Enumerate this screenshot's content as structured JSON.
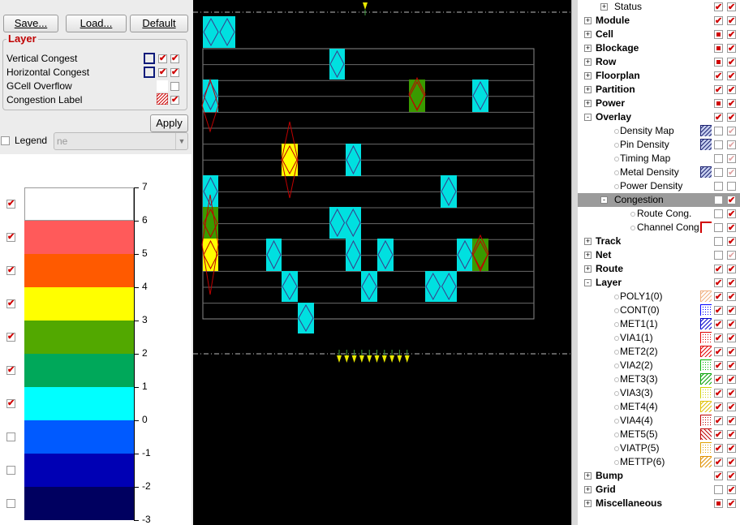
{
  "toolbar": {
    "save_label": "Save...",
    "load_label": "Load...",
    "default_label": "Default"
  },
  "layer_group": {
    "title": "Layer",
    "rows": [
      {
        "label": "Vertical Congest",
        "checked": true
      },
      {
        "label": "Horizontal Congest",
        "checked": true
      },
      {
        "label": "GCell Overflow",
        "checked": false
      },
      {
        "label": "Congestion Label",
        "checked": true
      }
    ],
    "apply_label": "Apply"
  },
  "legend": {
    "label": "Legend",
    "checked": false,
    "select_value": "ne",
    "bands": [
      {
        "color": "#ffffff",
        "checked": true
      },
      {
        "color": "#ff5a5a",
        "checked": true
      },
      {
        "color": "#ff5a00",
        "checked": true
      },
      {
        "color": "#ffff00",
        "checked": true
      },
      {
        "color": "#52a800",
        "checked": true
      },
      {
        "color": "#00a85a",
        "checked": true
      },
      {
        "color": "#00ffff",
        "checked": true
      },
      {
        "color": "#005aff",
        "checked": false
      },
      {
        "color": "#0000b4",
        "checked": false
      },
      {
        "color": "#000060",
        "checked": false
      }
    ],
    "ticks": [
      "7",
      "6",
      "5",
      "4",
      "3",
      "2",
      "1",
      "0",
      "-1",
      "-2",
      "-3"
    ]
  },
  "tree": {
    "rows": [
      {
        "label": "Status",
        "level": "child",
        "bold": false
      },
      {
        "label": "Module",
        "level": "top",
        "bold": true
      },
      {
        "label": "Cell",
        "level": "top",
        "bold": true
      },
      {
        "label": "Blockage",
        "level": "top",
        "bold": true
      },
      {
        "label": "Row",
        "level": "top",
        "bold": true
      },
      {
        "label": "Floorplan",
        "level": "top",
        "bold": true
      },
      {
        "label": "Partition",
        "level": "top",
        "bold": true
      },
      {
        "label": "Power",
        "level": "top",
        "bold": true
      },
      {
        "label": "Overlay",
        "level": "top",
        "bold": true
      },
      {
        "label": "Density Map",
        "level": "child",
        "bold": false
      },
      {
        "label": "Pin Density",
        "level": "child",
        "bold": false
      },
      {
        "label": "Timing Map",
        "level": "child",
        "bold": false
      },
      {
        "label": "Metal Density",
        "level": "child",
        "bold": false
      },
      {
        "label": "Power Density",
        "level": "child",
        "bold": false
      },
      {
        "label": "Congestion",
        "level": "child",
        "bold": false
      },
      {
        "label": "Route Cong.",
        "level": "grandchild",
        "bold": false
      },
      {
        "label": "Channel Cong",
        "level": "grandchild",
        "bold": false
      },
      {
        "label": "Track",
        "level": "top",
        "bold": true
      },
      {
        "label": "Net",
        "level": "top",
        "bold": true
      },
      {
        "label": "Route",
        "level": "top",
        "bold": true
      },
      {
        "label": "Layer",
        "level": "top",
        "bold": true
      },
      {
        "label": "POLY1(0)",
        "level": "child",
        "bold": false
      },
      {
        "label": "CONT(0)",
        "level": "child",
        "bold": false
      },
      {
        "label": "MET1(1)",
        "level": "child",
        "bold": false
      },
      {
        "label": "VIA1(1)",
        "level": "child",
        "bold": false
      },
      {
        "label": "MET2(2)",
        "level": "child",
        "bold": false
      },
      {
        "label": "VIA2(2)",
        "level": "child",
        "bold": false
      },
      {
        "label": "MET3(3)",
        "level": "child",
        "bold": false
      },
      {
        "label": "VIA3(3)",
        "level": "child",
        "bold": false
      },
      {
        "label": "MET4(4)",
        "level": "child",
        "bold": false
      },
      {
        "label": "VIA4(4)",
        "level": "child",
        "bold": false
      },
      {
        "label": "MET5(5)",
        "level": "child",
        "bold": false
      },
      {
        "label": "VIATP(5)",
        "level": "child",
        "bold": false
      },
      {
        "label": "METTP(6)",
        "level": "child",
        "bold": false
      },
      {
        "label": "Bump",
        "level": "top",
        "bold": true
      },
      {
        "label": "Grid",
        "level": "top",
        "bold": true
      },
      {
        "label": "Miscellaneous",
        "level": "top",
        "bold": true
      }
    ]
  },
  "colors": {
    "accent_check": "#d00000",
    "canvas_bg": "#000000",
    "cell_cyan": "#00e0e0",
    "cell_yellow": "#ffff00",
    "cell_green": "#3a9a00"
  }
}
